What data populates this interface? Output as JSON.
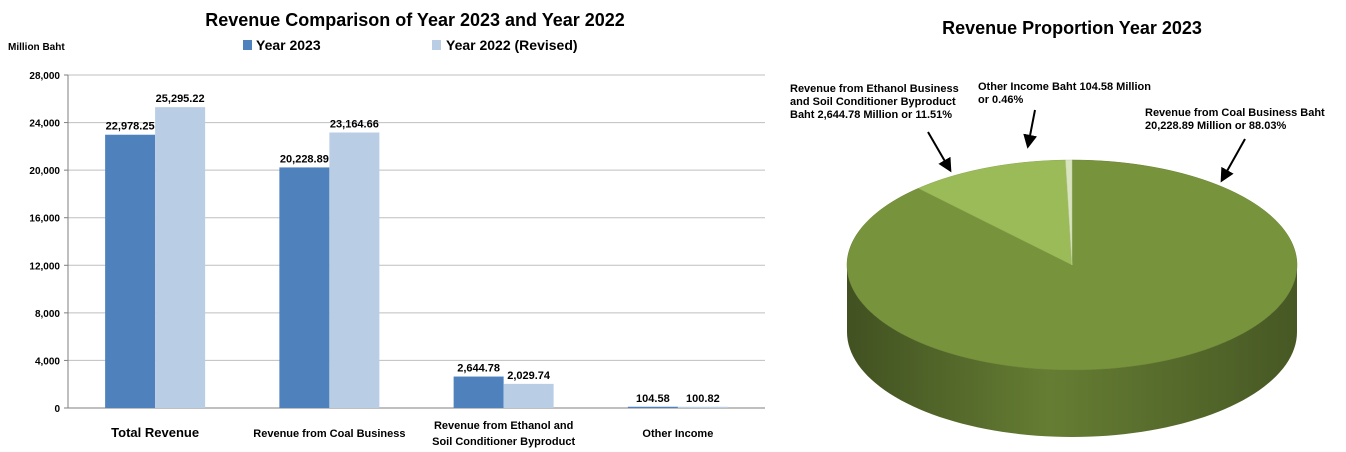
{
  "chart_data": [
    {
      "type": "bar",
      "title": "Revenue Comparison of Year 2023 and Year 2022",
      "ylabel": "Million Baht",
      "xlabel": "",
      "ylim": [
        0,
        28000
      ],
      "yticks": [
        0,
        4000,
        8000,
        12000,
        16000,
        20000,
        24000,
        28000
      ],
      "ytick_labels": [
        "0",
        "4,000",
        "8,000",
        "12,000",
        "16,000",
        "20,000",
        "24,000",
        "28,000"
      ],
      "grid": true,
      "legend": "top",
      "categories": [
        [
          "Total Revenue"
        ],
        [
          "Revenue from Coal Business"
        ],
        [
          "Revenue from Ethanol and",
          "Soil Conditioner Byproduct"
        ],
        [
          "Other Income"
        ]
      ],
      "series": [
        {
          "name": "Year 2023",
          "color": "#4f81bd",
          "values": [
            22978.25,
            20228.89,
            2644.78,
            104.58
          ],
          "labels": [
            "22,978.25",
            "20,228.89",
            "2,644.78",
            "104.58"
          ]
        },
        {
          "name": "Year 2022 (Revised)",
          "color": "#b9cde5",
          "values": [
            25295.22,
            23164.66,
            2029.74,
            100.82
          ],
          "labels": [
            "25,295.22",
            "23,164.66",
            "2,029.74",
            "100.82"
          ]
        }
      ]
    },
    {
      "type": "pie",
      "title": "Revenue Proportion  Year 2023",
      "slices": [
        {
          "name": "Revenue from Coal Business",
          "value": 88.03,
          "color": "#77933c",
          "label": [
            "Revenue from Coal Business Baht",
            "20,228.89 Million  or 88.03%"
          ]
        },
        {
          "name": "Revenue from Ethanol Business and Soil Conditioner Byproduct",
          "value": 11.51,
          "color": "#9bbb59",
          "label": [
            "Revenue from Ethanol Business",
            "and Soil Conditioner Byproduct",
            "Baht 2,644.78 Million or 11.51%"
          ]
        },
        {
          "name": "Other Income",
          "value": 0.46,
          "color": "#d7e4bd",
          "label": [
            "Other Income Baht 104.58 Million",
            "or 0.46%"
          ]
        }
      ]
    }
  ]
}
